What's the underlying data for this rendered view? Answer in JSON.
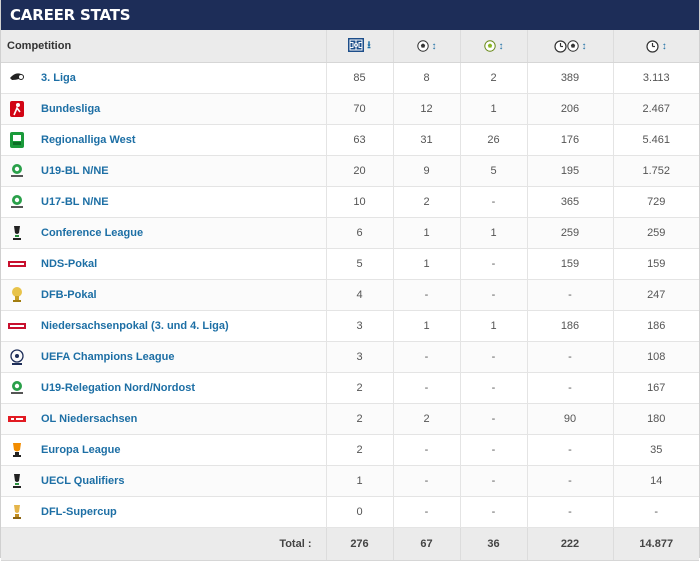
{
  "header": {
    "title": "CAREER STATS"
  },
  "columns": {
    "competition": "Competition"
  },
  "rows": [
    {
      "name": "3. Liga",
      "apps": "85",
      "goals": "8",
      "assists": "2",
      "mpg": "389",
      "mins": "3.113",
      "logo": "3-liga-logo"
    },
    {
      "name": "Bundesliga",
      "apps": "70",
      "goals": "12",
      "assists": "1",
      "mpg": "206",
      "mins": "2.467",
      "logo": "bundesliga-logo"
    },
    {
      "name": "Regionalliga West",
      "apps": "63",
      "goals": "31",
      "assists": "26",
      "mpg": "176",
      "mins": "5.461",
      "logo": "regionalliga-logo"
    },
    {
      "name": "U19-BL N/NE",
      "apps": "20",
      "goals": "9",
      "assists": "5",
      "mpg": "195",
      "mins": "1.752",
      "logo": "junioren-bundesliga-logo"
    },
    {
      "name": "U17-BL N/NE",
      "apps": "10",
      "goals": "2",
      "assists": "-",
      "mpg": "365",
      "mins": "729",
      "logo": "junioren-bundesliga-logo"
    },
    {
      "name": "Conference League",
      "apps": "6",
      "goals": "1",
      "assists": "1",
      "mpg": "259",
      "mins": "259",
      "logo": "conference-league-logo"
    },
    {
      "name": "NDS-Pokal",
      "apps": "5",
      "goals": "1",
      "assists": "-",
      "mpg": "159",
      "mins": "159",
      "logo": "nds-pokal-logo"
    },
    {
      "name": "DFB-Pokal",
      "apps": "4",
      "goals": "-",
      "assists": "-",
      "mpg": "-",
      "mins": "247",
      "logo": "dfb-pokal-logo"
    },
    {
      "name": "Niedersachsenpokal (3. und 4. Liga)",
      "apps": "3",
      "goals": "1",
      "assists": "1",
      "mpg": "186",
      "mins": "186",
      "logo": "nds-pokal-logo"
    },
    {
      "name": "UEFA Champions League",
      "apps": "3",
      "goals": "-",
      "assists": "-",
      "mpg": "-",
      "mins": "108",
      "logo": "champions-league-logo"
    },
    {
      "name": "U19-Relegation Nord/Nordost",
      "apps": "2",
      "goals": "-",
      "assists": "-",
      "mpg": "-",
      "mins": "167",
      "logo": "junioren-bundesliga-logo"
    },
    {
      "name": "OL Niedersachsen",
      "apps": "2",
      "goals": "2",
      "assists": "-",
      "mpg": "90",
      "mins": "180",
      "logo": "oberliga-logo"
    },
    {
      "name": "Europa League",
      "apps": "2",
      "goals": "-",
      "assists": "-",
      "mpg": "-",
      "mins": "35",
      "logo": "europa-league-logo"
    },
    {
      "name": "UECL Qualifiers",
      "apps": "1",
      "goals": "-",
      "assists": "-",
      "mpg": "-",
      "mins": "14",
      "logo": "conference-league-logo"
    },
    {
      "name": "DFL-Supercup",
      "apps": "0",
      "goals": "-",
      "assists": "-",
      "mpg": "-",
      "mins": "-",
      "logo": "supercup-logo"
    }
  ],
  "totals": {
    "label": "Total :",
    "apps": "276",
    "goals": "67",
    "assists": "36",
    "mpg": "222",
    "mins": "14.877"
  },
  "colors": {
    "header_bg": "#1d2d58",
    "link": "#1d6fa5",
    "header_row_bg": "#ebebeb"
  }
}
